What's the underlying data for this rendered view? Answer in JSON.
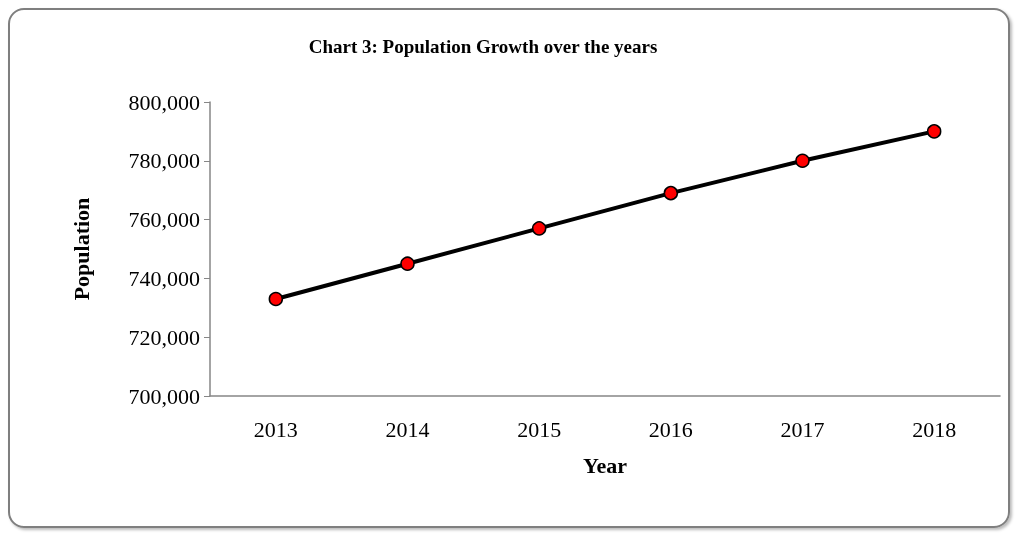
{
  "chart_data": {
    "type": "line",
    "title": "Chart 3: Population Growth over the years",
    "xlabel": "Year",
    "ylabel": "Population",
    "categories": [
      "2013",
      "2014",
      "2015",
      "2016",
      "2017",
      "2018"
    ],
    "series": [
      {
        "color": "#000000",
        "values": [
          733000,
          745000,
          757000,
          769000,
          780000,
          790000
        ]
      }
    ],
    "marker": "circle",
    "line_style": "solid",
    "grid": false,
    "ylim": [
      700000,
      800000
    ],
    "yticks": [
      {
        "value": 700000,
        "label": "700,000"
      },
      {
        "value": 720000,
        "label": "720,000"
      },
      {
        "value": 740000,
        "label": "740,000"
      },
      {
        "value": 760000,
        "label": "760,000"
      },
      {
        "value": 780000,
        "label": "780,000"
      },
      {
        "value": 800000,
        "label": "800,000"
      }
    ]
  }
}
